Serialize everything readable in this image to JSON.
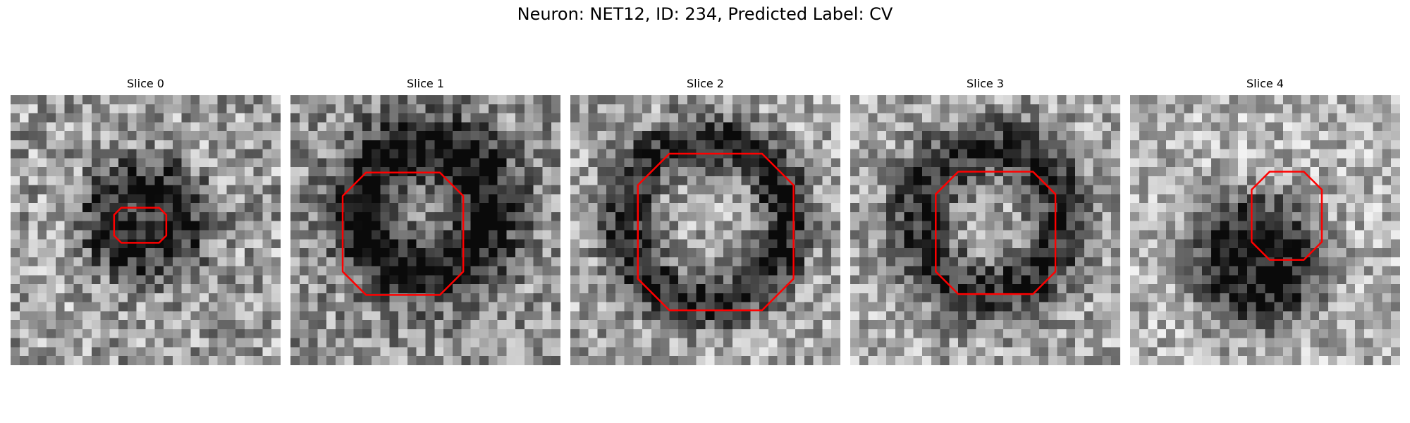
{
  "figure": {
    "title": "Neuron: NET12, ID: 234, Predicted Label: CV",
    "contour_color": "#ff0000"
  },
  "panels": [
    {
      "title": "Slice 0"
    },
    {
      "title": "Slice 1"
    },
    {
      "title": "Slice 2"
    },
    {
      "title": "Slice 3"
    },
    {
      "title": "Slice 4"
    }
  ]
}
